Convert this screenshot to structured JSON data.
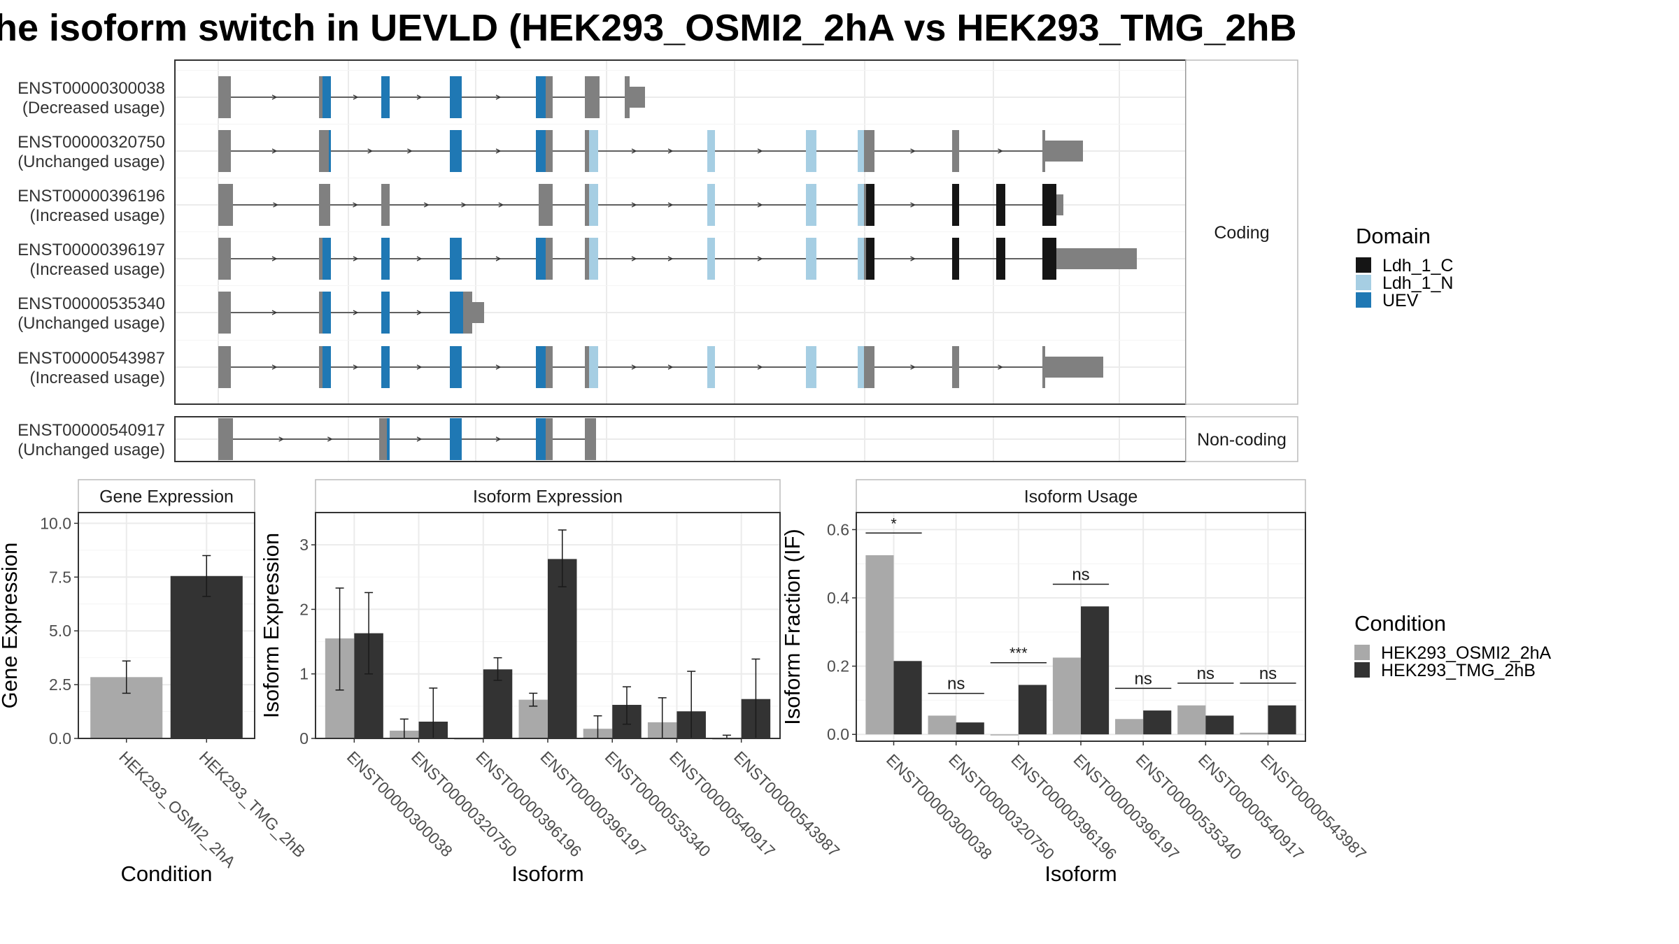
{
  "title": "he isoform switch in UEVLD (HEK293_OSMI2_2hA vs HEK293_TMG_2hB",
  "colors": {
    "exon": "#808080",
    "ldh_c": "#151515",
    "ldh_n": "#a6cee3",
    "uev": "#1f78b4",
    "cond_a": "#a9a9a9",
    "cond_b": "#333333",
    "grid": "#ebebeb",
    "strip": "#ffffff",
    "frame": "#333333"
  },
  "structure": {
    "groups": [
      {
        "label": "Coding",
        "transcripts": [
          {
            "id": "ENST00000300038",
            "status": "(Decreased usage)"
          },
          {
            "id": "ENST00000320750",
            "status": "(Unchanged usage)"
          },
          {
            "id": "ENST00000396196",
            "status": "(Increased usage)"
          },
          {
            "id": "ENST00000396197",
            "status": "(Increased usage)"
          },
          {
            "id": "ENST00000535340",
            "status": "(Unchanged usage)"
          },
          {
            "id": "ENST00000543987",
            "status": "(Increased usage)"
          }
        ]
      },
      {
        "label": "Non-coding",
        "transcripts": [
          {
            "id": "ENST00000540917",
            "status": "(Unchanged usage)"
          }
        ]
      }
    ]
  },
  "legend_domain": {
    "title": "Domain",
    "items": [
      {
        "label": "Ldh_1_C",
        "color": "#151515"
      },
      {
        "label": "Ldh_1_N",
        "color": "#a6cee3"
      },
      {
        "label": "UEV",
        "color": "#1f78b4"
      }
    ]
  },
  "legend_condition": {
    "title": "Condition",
    "items": [
      {
        "label": "HEK293_OSMI2_2hA",
        "color": "#a9a9a9"
      },
      {
        "label": "HEK293_TMG_2hB",
        "color": "#333333"
      }
    ]
  },
  "chart_data": [
    {
      "type": "bar",
      "title": "Gene Expression",
      "xlabel": "Condition",
      "ylabel": "Gene Expression",
      "categories": [
        "HEK293_OSMI2_2hA",
        "HEK293_TMG_2hB"
      ],
      "values": [
        2.85,
        7.55
      ],
      "errors": [
        [
          2.1,
          3.6
        ],
        [
          6.6,
          8.5
        ]
      ],
      "ylim": [
        0,
        10.5
      ],
      "yticks": [
        "0.0",
        "2.5",
        "5.0",
        "7.5",
        "10.0"
      ],
      "grid": true
    },
    {
      "type": "bar",
      "title": "Isoform Expression",
      "xlabel": "Isoform",
      "ylabel": "Isoform Expression",
      "categories": [
        "ENST00000300038",
        "ENST00000320750",
        "ENST00000396196",
        "ENST00000396197",
        "ENST00000535340",
        "ENST00000540917",
        "ENST00000543987"
      ],
      "series": [
        {
          "name": "HEK293_OSMI2_2hA",
          "values": [
            1.55,
            0.12,
            0.0,
            0.6,
            0.15,
            0.25,
            0.0
          ],
          "errors": [
            [
              0.75,
              2.33
            ],
            [
              0.0,
              0.3
            ],
            [
              0.0,
              0.0
            ],
            [
              0.5,
              0.7
            ],
            [
              0.0,
              0.35
            ],
            [
              0.0,
              0.63
            ],
            [
              0.0,
              0.05
            ]
          ]
        },
        {
          "name": "HEK293_TMG_2hB",
          "values": [
            1.63,
            0.26,
            1.07,
            2.78,
            0.52,
            0.42,
            0.61
          ],
          "errors": [
            [
              1.0,
              2.26
            ],
            [
              0.0,
              0.78
            ],
            [
              0.9,
              1.25
            ],
            [
              2.35,
              3.23
            ],
            [
              0.22,
              0.8
            ],
            [
              0.0,
              1.04
            ],
            [
              0.0,
              1.23
            ]
          ]
        }
      ],
      "ylim": [
        0,
        3.5
      ],
      "yticks": [
        "0",
        "1",
        "2",
        "3"
      ],
      "grid": true
    },
    {
      "type": "bar",
      "title": "Isoform Usage",
      "xlabel": "Isoform",
      "ylabel": "Isoform Fraction (IF)",
      "categories": [
        "ENST00000300038",
        "ENST00000320750",
        "ENST00000396196",
        "ENST00000396197",
        "ENST00000535340",
        "ENST00000540917",
        "ENST00000543987"
      ],
      "series": [
        {
          "name": "HEK293_OSMI2_2hA",
          "values": [
            0.525,
            0.055,
            0.0,
            0.225,
            0.045,
            0.085,
            0.005
          ]
        },
        {
          "name": "HEK293_TMG_2hB",
          "values": [
            0.215,
            0.035,
            0.145,
            0.375,
            0.07,
            0.055,
            0.085
          ]
        }
      ],
      "significance": [
        "*",
        "ns",
        "***",
        "ns",
        "ns",
        "ns",
        "ns"
      ],
      "ylim": [
        -0.02,
        0.65
      ],
      "yticks": [
        "0.0",
        "0.2",
        "0.4",
        "0.6"
      ],
      "grid": true
    }
  ]
}
